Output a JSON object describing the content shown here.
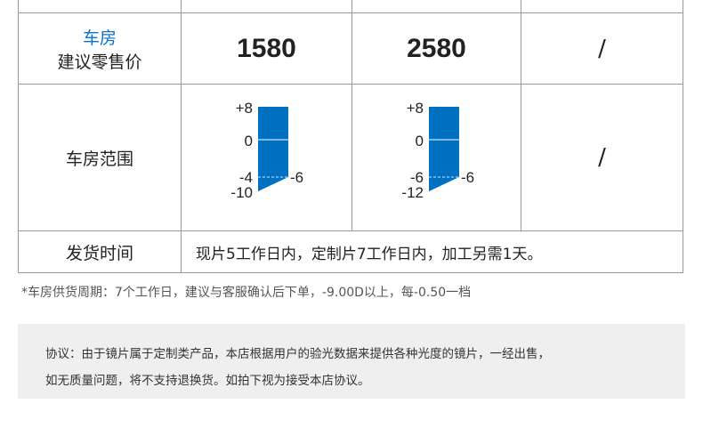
{
  "table": {
    "price_row": {
      "label_top": "车房",
      "label_bottom": "建议零售价",
      "values": [
        "1580",
        "2580",
        "/"
      ]
    },
    "range_row": {
      "label": "车房范围",
      "gauges": [
        {
          "top": "+8",
          "zero": "0",
          "mid": "-4",
          "bottom": "-10",
          "side": "-6",
          "max": 8,
          "mid_value": -4,
          "min": -10,
          "side_value": -6
        },
        {
          "top": "+8",
          "zero": "0",
          "mid": "-6",
          "bottom": "-12",
          "side": "-6",
          "max": 8,
          "mid_value": -6,
          "min": -12,
          "side_value": -6
        }
      ],
      "third": "/"
    },
    "ship_row": {
      "label": "发货时间",
      "value": "现片5工作日内，定制片7工作日内，加工另需1天。"
    }
  },
  "note": "*车房供货周期：7个工作日，建议与客服确认后下单，-9.00D以上，每-0.50一档",
  "agreement": {
    "line1": "协议：由于镜片属于定制类产品，本店根据用户的验光数据来提供各种光度的镜片，一经出售，",
    "line2": "如无质量问题，将不支持退换货。如拍下视为接受本店协议。"
  },
  "colors": {
    "gauge": "#0070c0",
    "accent": "#0a73c6"
  }
}
